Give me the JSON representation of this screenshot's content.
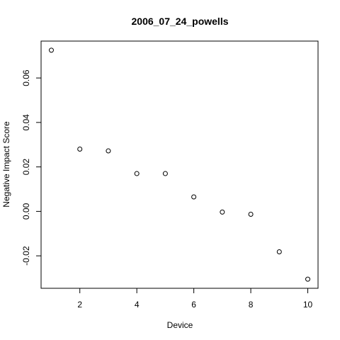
{
  "chart_data": {
    "type": "scatter",
    "title": "2006_07_24_powells",
    "xlabel": "Device",
    "ylabel": "Negative Impact Score",
    "x": [
      1,
      2,
      3,
      4,
      5,
      6,
      7,
      8,
      9,
      10
    ],
    "y": [
      0.0725,
      0.028,
      0.0272,
      0.017,
      0.017,
      0.0065,
      -0.0003,
      -0.0013,
      -0.0182,
      -0.0305
    ],
    "xlim": [
      0.64,
      10.36
    ],
    "ylim": [
      -0.0346,
      0.0766
    ],
    "xticks": [
      2,
      4,
      6,
      8,
      10
    ],
    "xtick_labels": [
      "2",
      "4",
      "6",
      "8",
      "10"
    ],
    "yticks": [
      -0.02,
      0.0,
      0.02,
      0.04,
      0.06
    ],
    "ytick_labels": [
      "-0.02",
      "0.00",
      "0.02",
      "0.04",
      "0.06"
    ],
    "marker": "open-circle",
    "point_color": "#000000",
    "grid": false,
    "legend": "none"
  }
}
